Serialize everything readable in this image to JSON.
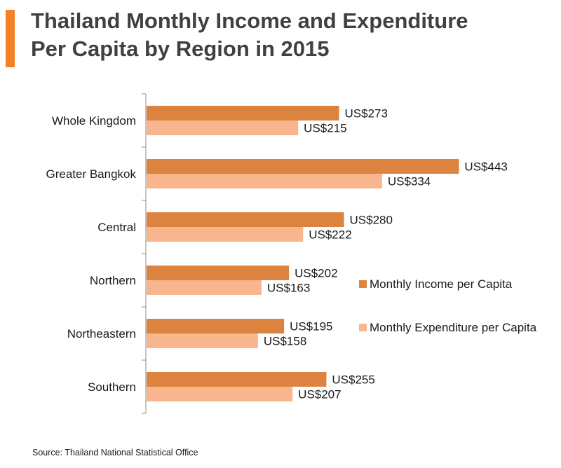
{
  "title_line1": "Thailand Monthly Income and Expenditure",
  "title_line2": "Per Capita by Region in 2015",
  "source": "Source: Thailand National Statistical Office",
  "chart_data": {
    "type": "bar",
    "orientation": "horizontal",
    "categories": [
      "Whole Kingdom",
      "Greater Bangkok",
      "Central",
      "Northern",
      "Northeastern",
      "Southern"
    ],
    "series": [
      {
        "name": "Monthly Income per Capita",
        "color": "#dd8340",
        "values": [
          273,
          443,
          280,
          202,
          195,
          255
        ],
        "labels": [
          "US$273",
          "US$443",
          "US$280",
          "US$202",
          "US$195",
          "US$255"
        ]
      },
      {
        "name": "Monthly Expenditure per Capita",
        "color": "#f9b58e",
        "values": [
          215,
          334,
          222,
          163,
          158,
          207
        ],
        "labels": [
          "US$215",
          "US$334",
          "US$222",
          "US$163",
          "US$158",
          "US$207"
        ]
      }
    ],
    "xlim": [
      0,
      500
    ],
    "grid": false,
    "legend": "right"
  }
}
